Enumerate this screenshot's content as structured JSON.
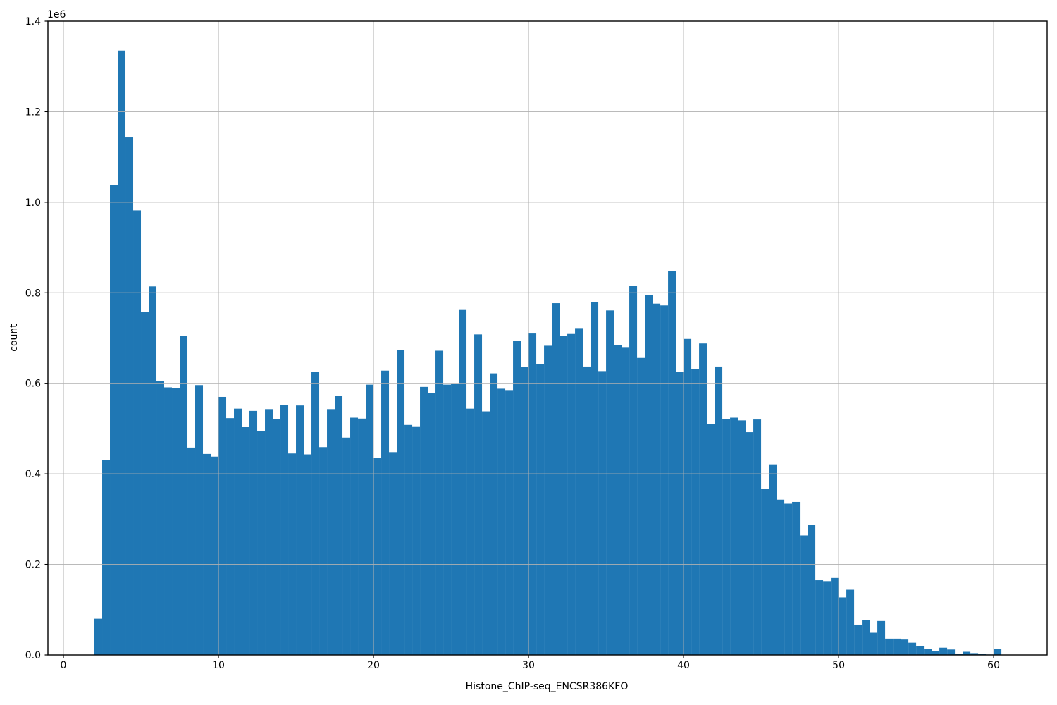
{
  "chart_data": {
    "type": "bar",
    "subtype": "histogram",
    "title": "",
    "xlabel": "Histone_ChIP-seq_ENCSR386KFO",
    "ylabel": "count",
    "y_offset_label": "1e6",
    "bin_start": 2.0,
    "bin_width": 0.5,
    "counts": [
      80000,
      430000,
      1038000,
      1335000,
      1143000,
      982000,
      757000,
      814000,
      605000,
      591000,
      589000,
      704000,
      458000,
      596000,
      444000,
      438000,
      570000,
      523000,
      544000,
      504000,
      539000,
      495000,
      543000,
      521000,
      552000,
      445000,
      551000,
      443000,
      625000,
      459000,
      543000,
      573000,
      480000,
      524000,
      522000,
      597000,
      435000,
      628000,
      448000,
      674000,
      508000,
      505000,
      592000,
      579000,
      672000,
      597000,
      600000,
      762000,
      544000,
      708000,
      538000,
      622000,
      588000,
      585000,
      693000,
      636000,
      710000,
      642000,
      683000,
      777000,
      705000,
      709000,
      722000,
      637000,
      780000,
      627000,
      761000,
      684000,
      680000,
      815000,
      656000,
      795000,
      776000,
      772000,
      848000,
      625000,
      698000,
      631000,
      688000,
      510000,
      637000,
      521000,
      524000,
      518000,
      492000,
      520000,
      367000,
      421000,
      343000,
      334000,
      338000,
      264000,
      287000,
      165000,
      163000,
      170000,
      127000,
      144000,
      67000,
      77000,
      49000,
      75000,
      36000,
      36000,
      34000,
      27000,
      20000,
      14000,
      8000,
      16000,
      12000,
      3000,
      7000,
      4000,
      2000,
      1000,
      12500
    ],
    "x_ticks": [
      0,
      10,
      20,
      30,
      40,
      50,
      60
    ],
    "x_tick_labels": [
      "0",
      "10",
      "20",
      "30",
      "40",
      "50",
      "60"
    ],
    "y_ticks": [
      0,
      200000,
      400000,
      600000,
      800000,
      1000000,
      1200000,
      1400000
    ],
    "y_tick_labels": [
      "0.0",
      "0.2",
      "0.4",
      "0.6",
      "0.8",
      "1.0",
      "1.2",
      "1.4"
    ],
    "xlim": [
      -1.0,
      63.45
    ],
    "ylim": [
      0,
      1400000
    ],
    "grid": true,
    "legend": "none",
    "bar_color": "#1f77b4",
    "grid_color": "#b0b0b0",
    "spine_color": "#000000"
  }
}
